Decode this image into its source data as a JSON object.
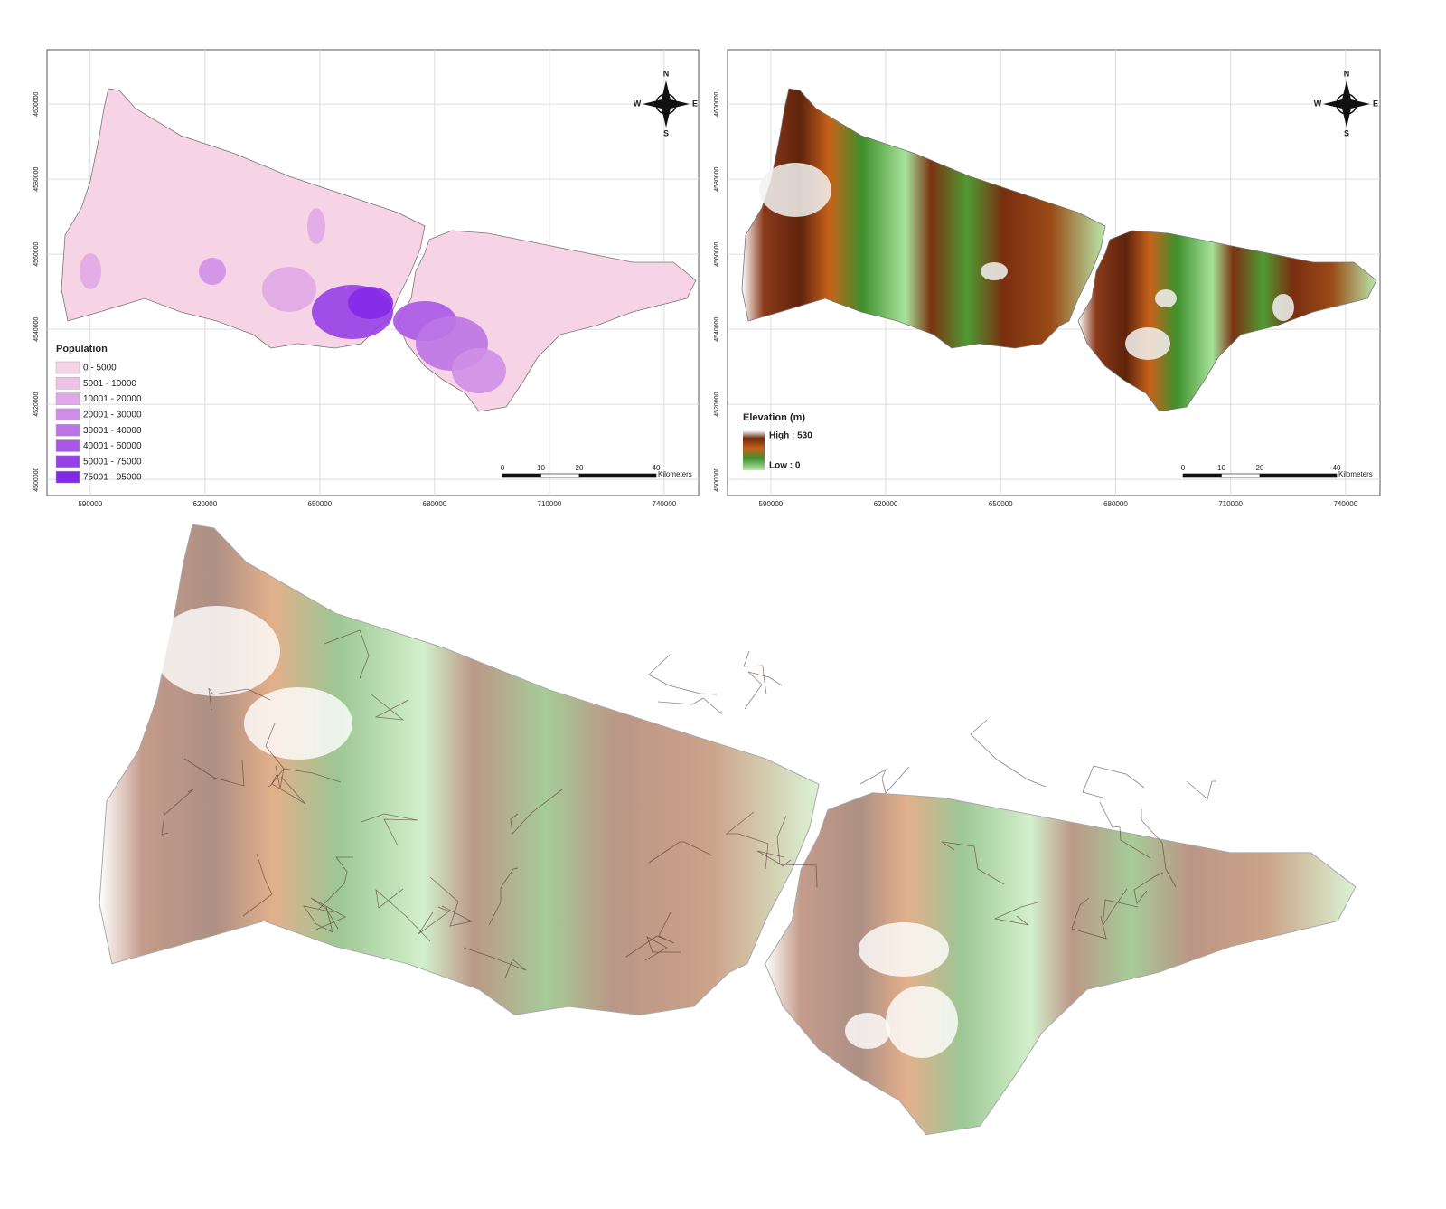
{
  "axes": {
    "xticks": [
      590000,
      620000,
      650000,
      680000,
      710000,
      740000
    ],
    "yticks": [
      4500000,
      4520000,
      4540000,
      4560000,
      4580000,
      4600000
    ],
    "xlim": [
      578700,
      749000
    ],
    "ylim": [
      4495700,
      4614500
    ]
  },
  "compass": {
    "n": "N",
    "s": "S",
    "e": "E",
    "w": "W"
  },
  "scale_bar": {
    "ticks": [
      0,
      10,
      20,
      40
    ],
    "unit": "Kilometers"
  },
  "population_map": {
    "legend_title": "Population",
    "classes": [
      "0 - 5000",
      "5001 - 10000",
      "10001 - 20000",
      "20001 - 30000",
      "30001 - 40000",
      "40001 - 50000",
      "50001 - 75000",
      "75001 - 95000"
    ],
    "colors": [
      "#f7d3e6",
      "#efc0e8",
      "#e0a8e8",
      "#cf8fe6",
      "#bd74e6",
      "#a958e6",
      "#9640e6",
      "#8428e8"
    ]
  },
  "elevation_map": {
    "legend_title": "Elevation (m)",
    "high": "High : 530",
    "low": "Low : 0"
  }
}
